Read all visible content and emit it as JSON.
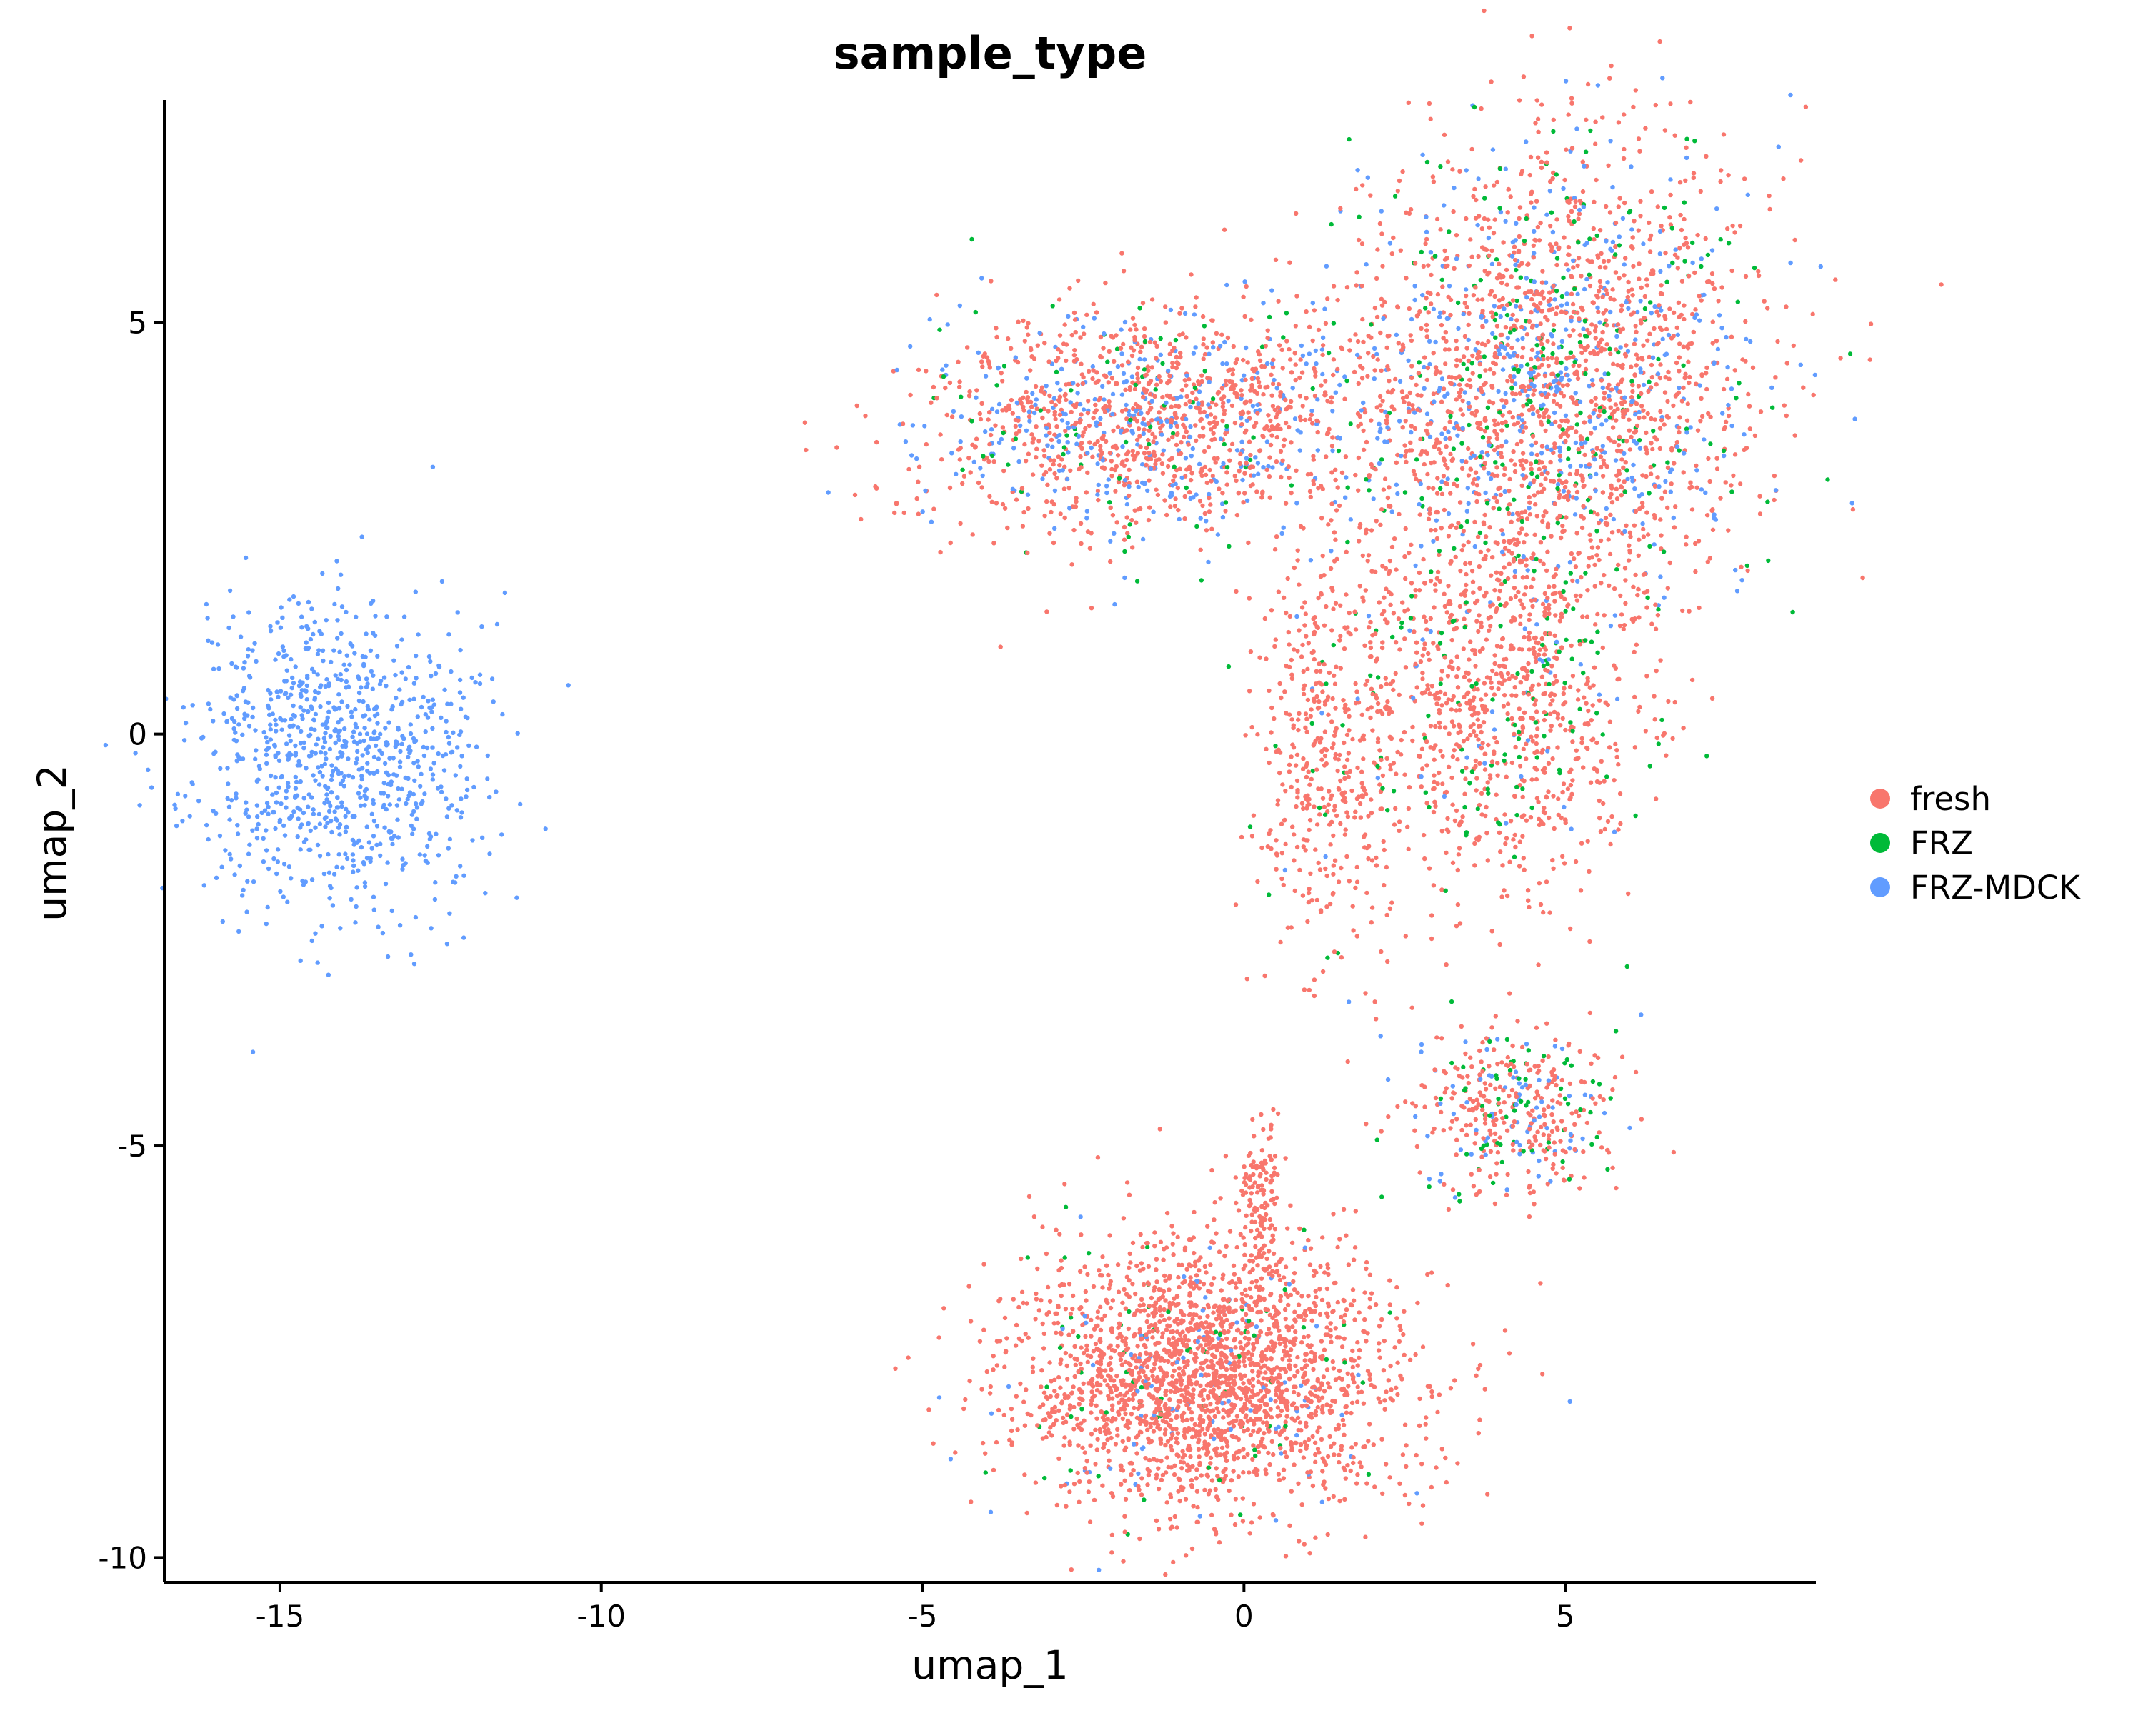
{
  "chart_data": {
    "type": "scatter",
    "title": "sample_type",
    "xlabel": "umap_1",
    "ylabel": "umap_2",
    "xlim": [
      -16.8,
      8.9
    ],
    "ylim": [
      -10.3,
      7.7
    ],
    "x_ticks": [
      -15,
      -10,
      -5,
      0,
      5
    ],
    "y_ticks": [
      -10,
      -5,
      0,
      5
    ],
    "grid": false,
    "legend_position": "right",
    "series": [
      {
        "name": "fresh",
        "color": "#F8766D"
      },
      {
        "name": "FRZ",
        "color": "#00BA38"
      },
      {
        "name": "FRZ-MDCK",
        "color": "#619CFF"
      }
    ],
    "clusters": [
      {
        "label": "left cluster",
        "center": [
          -14.1,
          -0.3
        ],
        "spread": [
          1.1,
          0.95
        ],
        "points": 900,
        "mix": {
          "fresh": 0.0,
          "FRZ": 0.0,
          "FRZ-MDCK": 1.0
        }
      },
      {
        "label": "top-left arm",
        "center": [
          -1.5,
          3.8
        ],
        "spread": [
          1.8,
          0.7
        ],
        "points": 1400,
        "mix": {
          "fresh": 0.7,
          "FRZ": 0.06,
          "FRZ-MDCK": 0.24
        }
      },
      {
        "label": "top-right lobe",
        "center": [
          4.8,
          4.4
        ],
        "spread": [
          1.6,
          1.4
        ],
        "points": 2200,
        "mix": {
          "fresh": 0.68,
          "FRZ": 0.1,
          "FRZ-MDCK": 0.22
        }
      },
      {
        "label": "center-right mass",
        "center": [
          4.0,
          0.5
        ],
        "spread": [
          1.1,
          1.2
        ],
        "points": 1000,
        "mix": {
          "fresh": 0.85,
          "FRZ": 0.12,
          "FRZ-MDCK": 0.03
        }
      },
      {
        "label": "center loop",
        "center": [
          1.3,
          -0.2
        ],
        "spread": [
          0.6,
          1.3
        ],
        "points": 450,
        "mix": {
          "fresh": 0.96,
          "FRZ": 0.02,
          "FRZ-MDCK": 0.02
        }
      },
      {
        "label": "middle-right cluster",
        "center": [
          4.2,
          -4.6
        ],
        "spread": [
          0.8,
          0.5
        ],
        "points": 420,
        "mix": {
          "fresh": 0.7,
          "FRZ": 0.15,
          "FRZ-MDCK": 0.15
        }
      },
      {
        "label": "bottom cluster",
        "center": [
          -0.6,
          -7.8
        ],
        "spread": [
          1.5,
          0.8
        ],
        "points": 2400,
        "mix": {
          "fresh": 0.93,
          "FRZ": 0.03,
          "FRZ-MDCK": 0.04
        }
      },
      {
        "label": "bottom cluster tail",
        "center": [
          0.25,
          -5.6
        ],
        "spread": [
          0.15,
          0.5
        ],
        "points": 120,
        "mix": {
          "fresh": 1.0,
          "FRZ": 0.0,
          "FRZ-MDCK": 0.0
        }
      }
    ]
  }
}
